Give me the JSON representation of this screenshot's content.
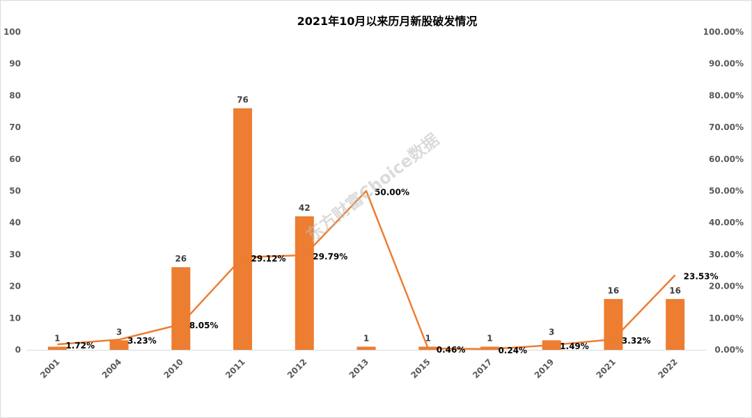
{
  "chart_data": {
    "type": "bar",
    "title": "2021年10月以来历月新股破发情况",
    "categories": [
      "2001",
      "2004",
      "2010",
      "2011",
      "2012",
      "2013",
      "2015",
      "2017",
      "2019",
      "2021",
      "2022"
    ],
    "series": [
      {
        "values": [
          1,
          3,
          26,
          76,
          42,
          1,
          1,
          1,
          3,
          16,
          16
        ],
        "labels": [
          "1",
          "3",
          "26",
          "76",
          "42",
          "1",
          "1",
          "1",
          "3",
          "16",
          "16"
        ],
        "color": "#ed7d31",
        "kind": "bar",
        "axis": "left"
      },
      {
        "values": [
          1.72,
          3.23,
          8.05,
          29.12,
          29.79,
          50.0,
          0.46,
          0.24,
          1.49,
          3.32,
          23.53
        ],
        "labels": [
          "1.72%",
          "3.23%",
          "8.05%",
          "29.12%",
          "29.79%",
          "50.00%",
          "0.46%",
          "0.24%",
          "1.49%",
          "3.32%",
          "23.53%"
        ],
        "color": "#ed7d31",
        "kind": "line",
        "axis": "right"
      }
    ],
    "ylim": [
      0,
      100
    ],
    "yticks": [
      "0",
      "10",
      "20",
      "30",
      "40",
      "50",
      "60",
      "70",
      "80",
      "90",
      "100"
    ],
    "y2lim": [
      0,
      100
    ],
    "y2ticks": [
      "0.00%",
      "10.00%",
      "20.00%",
      "30.00%",
      "40.00%",
      "50.00%",
      "60.00%",
      "70.00%",
      "80.00%",
      "90.00%",
      "100.00%"
    ],
    "grid": false,
    "legend": "none",
    "watermark": "东方财富Choice数据"
  }
}
